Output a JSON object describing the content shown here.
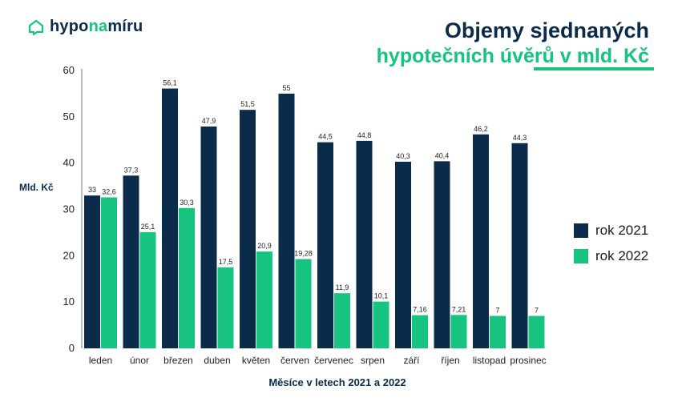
{
  "logo": {
    "part1": "hypo",
    "part2": "na",
    "part3": "míru"
  },
  "title": {
    "line1": "Objemy sjednaných",
    "line2": "hypotečních úvěrů v mld. Kč"
  },
  "colors": {
    "series_2021": "#0b2b4b",
    "series_2022": "#16c480",
    "brand_green": "#16c480",
    "brand_navy": "#0b2b4b"
  },
  "chart_data": {
    "type": "bar",
    "categories": [
      "leden",
      "únor",
      "březen",
      "duben",
      "květen",
      "červen",
      "červenec",
      "srpen",
      "září",
      "říjen",
      "listopad",
      "prosinec"
    ],
    "series": [
      {
        "name": "rok 2021",
        "values": [
          33,
          37.3,
          56.1,
          47.9,
          51.5,
          55,
          44.5,
          44.8,
          40.3,
          40.4,
          46.2,
          44.3
        ],
        "labels": [
          "33",
          "37,3",
          "56,1",
          "47,9",
          "51,5",
          "55",
          "44,5",
          "44,8",
          "40,3",
          "40,4",
          "46,2",
          "44,3"
        ]
      },
      {
        "name": "rok 2022",
        "values": [
          32.6,
          25.1,
          30.3,
          17.5,
          20.9,
          19.28,
          11.9,
          10.1,
          7.16,
          7.21,
          7,
          7
        ],
        "labels": [
          "32,6",
          "25,1",
          "30,3",
          "17,5",
          "20,9",
          "19,28",
          "11,9",
          "10,1",
          "7,16",
          "7,21",
          "7",
          "7"
        ]
      }
    ],
    "ylabel": "Mld. Kč",
    "xlabel": "Měsíce v letech 2021 a 2022",
    "ylim": [
      0,
      60
    ],
    "yticks": [
      0,
      10,
      20,
      30,
      40,
      50,
      60
    ],
    "grid": false,
    "legend_position": "right"
  }
}
